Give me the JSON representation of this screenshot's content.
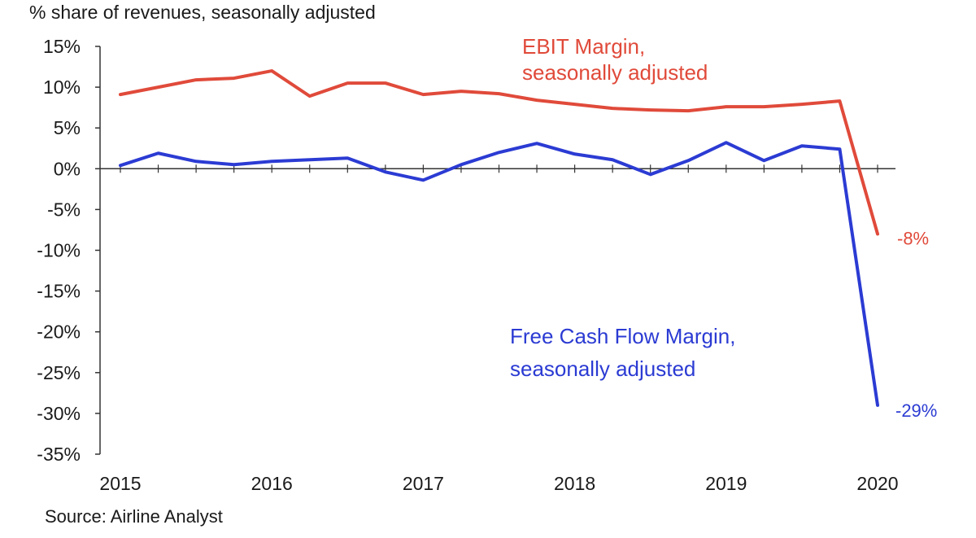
{
  "chart_data": {
    "type": "line",
    "ylabel": "% share of revenues, seasonally adjusted",
    "source": "Source: Airline Analyst",
    "ylim": [
      -35,
      15
    ],
    "yticks": [
      15,
      10,
      5,
      0,
      -5,
      -10,
      -15,
      -20,
      -25,
      -30,
      -35
    ],
    "ytick_labels": [
      "15%",
      "10%",
      "5%",
      "0%",
      "-5%",
      "-10%",
      "-15%",
      "-20%",
      "-25%",
      "-30%",
      "-35%"
    ],
    "xlim": [
      2015,
      2020.2
    ],
    "xticks": [
      2015,
      2016,
      2017,
      2018,
      2019,
      2020
    ],
    "xtick_labels": [
      "2015",
      "2016",
      "2017",
      "2018",
      "2019",
      "2020"
    ],
    "grid": false,
    "x": [
      2015.0,
      2015.25,
      2015.5,
      2015.75,
      2016.0,
      2016.25,
      2016.5,
      2016.75,
      2017.0,
      2017.25,
      2017.5,
      2017.75,
      2018.0,
      2018.25,
      2018.5,
      2018.75,
      2019.0,
      2019.25,
      2019.5,
      2019.75,
      2020.0
    ],
    "series": [
      {
        "name": "EBIT Margin, seasonally adjusted",
        "annotation_lines": [
          "EBIT Margin,",
          "seasonally adjusted"
        ],
        "color": "#e04a3a",
        "values": [
          9.1,
          10.0,
          10.9,
          11.1,
          12.0,
          8.9,
          10.5,
          10.5,
          9.1,
          9.5,
          9.2,
          8.4,
          7.9,
          7.4,
          7.2,
          7.1,
          7.6,
          7.6,
          7.9,
          8.3,
          -8.0
        ],
        "end_label": "-8%"
      },
      {
        "name": "Free Cash Flow Margin, seasonally adjusted",
        "annotation_lines": [
          "Free Cash Flow Margin,",
          "seasonally adjusted"
        ],
        "color": "#2b3bd3",
        "values": [
          0.4,
          1.9,
          0.9,
          0.5,
          0.9,
          1.1,
          1.3,
          -0.4,
          -1.4,
          0.5,
          2.0,
          3.1,
          1.8,
          1.1,
          -0.7,
          1.0,
          3.2,
          1.0,
          2.8,
          2.4,
          -29.0
        ],
        "end_label": "-29%"
      }
    ]
  }
}
